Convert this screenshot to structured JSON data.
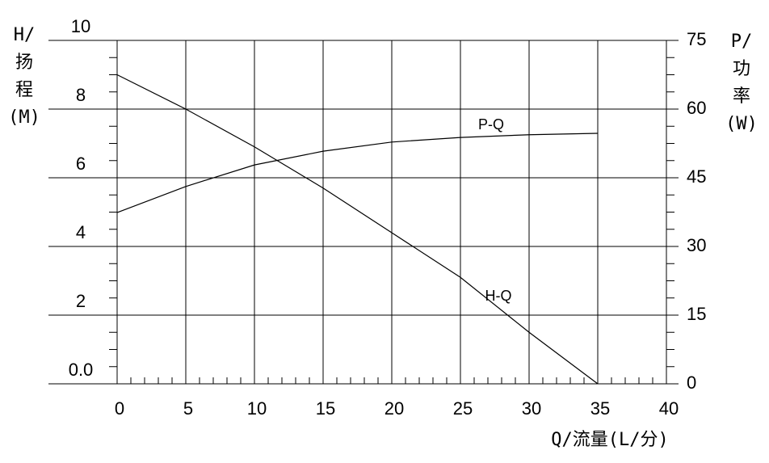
{
  "chart_data": {
    "type": "line",
    "x_label": "Q/流量(L/分)",
    "y_label": [
      "H/",
      "扬",
      "程",
      "(M)"
    ],
    "y2_label": [
      "P/",
      "功",
      "率",
      "(W)"
    ],
    "x": [
      0,
      5,
      10,
      15,
      20,
      25,
      30,
      35
    ],
    "xlim": [
      0,
      40
    ],
    "xticks": [
      0,
      5,
      10,
      15,
      20,
      25,
      30,
      35,
      40
    ],
    "ylim": [
      0,
      10
    ],
    "yticks": [
      {
        "value": 0,
        "label": "0.0"
      },
      2,
      4,
      6,
      8,
      10
    ],
    "y2lim": [
      0,
      75
    ],
    "y2ticks": [
      0,
      15,
      30,
      45,
      60,
      75
    ],
    "grid": true,
    "series": [
      {
        "name": "H-Q",
        "color": "#000000",
        "values": [
          9.0,
          8.0,
          6.9,
          5.7,
          4.4,
          3.1,
          1.5,
          0
        ]
      },
      {
        "name": "P-Q",
        "color": "#000000",
        "axis": "y2",
        "values": [
          37.4,
          43.1,
          47.8,
          50.8,
          52.8,
          53.8,
          54.4,
          54.7
        ]
      }
    ]
  }
}
